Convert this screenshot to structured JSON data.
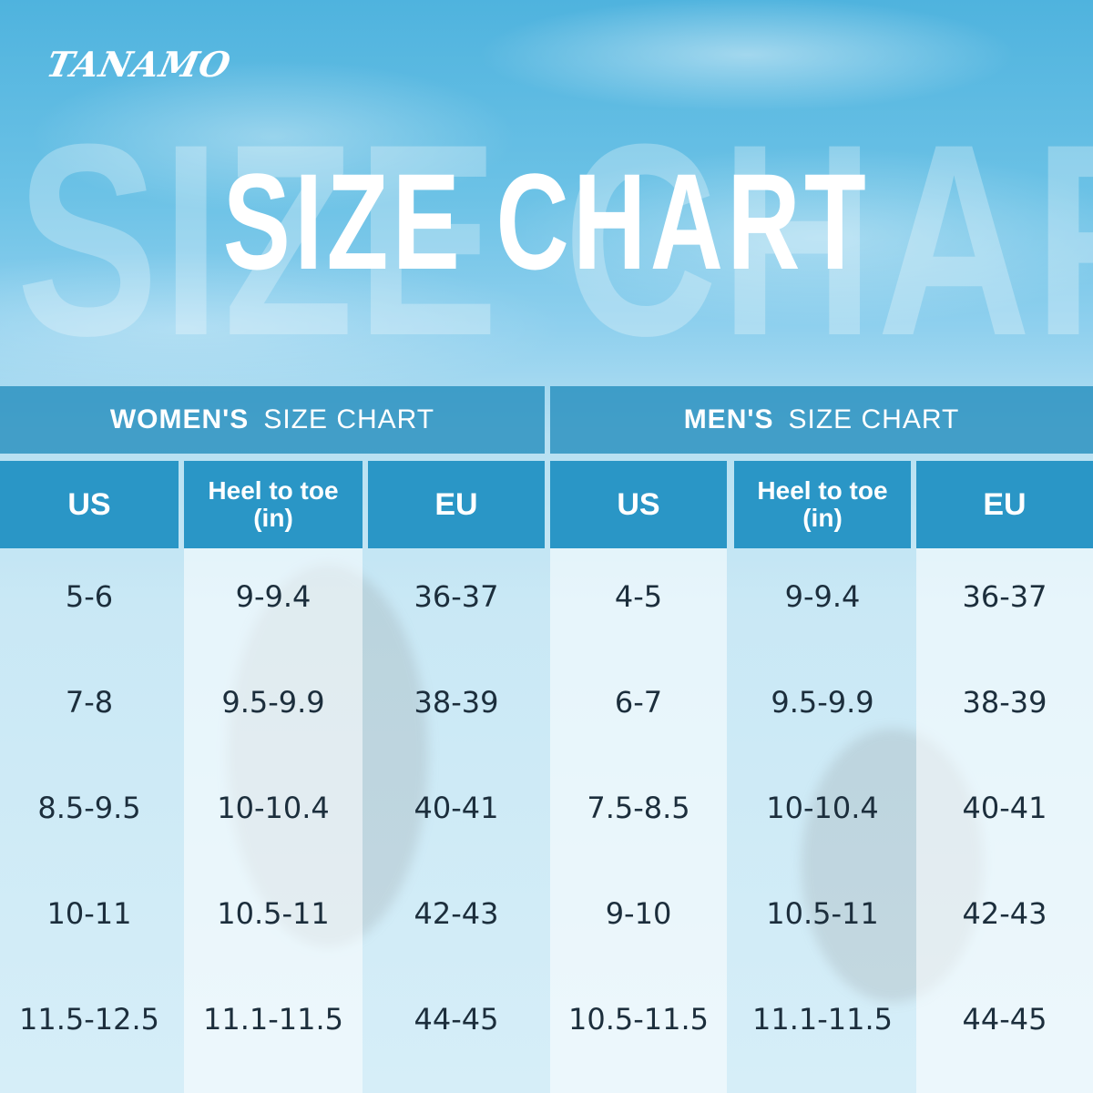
{
  "brand": "TANAMO",
  "background_title": "SIZE CHART",
  "title": "SIZE CHART",
  "women": {
    "header_bold": "WOMEN'S",
    "header_rest": "SIZE CHART",
    "columns": [
      "US",
      "Heel to toe",
      "(in)",
      "EU"
    ],
    "rows": [
      [
        "5-6",
        "9-9.4",
        "36-37"
      ],
      [
        "7-8",
        "9.5-9.9",
        "38-39"
      ],
      [
        "8.5-9.5",
        "10-10.4",
        "40-41"
      ],
      [
        "10-11",
        "10.5-11",
        "42-43"
      ],
      [
        "11.5-12.5",
        "11.1-11.5",
        "44-45"
      ]
    ]
  },
  "men": {
    "header_bold": "MEN'S",
    "header_rest": "SIZE CHART",
    "columns": [
      "US",
      "Heel to toe",
      "(in)",
      "EU"
    ],
    "rows": [
      [
        "4-5",
        "9-9.4",
        "36-37"
      ],
      [
        "6-7",
        "9.5-9.9",
        "38-39"
      ],
      [
        "7.5-8.5",
        "10-10.4",
        "40-41"
      ],
      [
        "9-10",
        "10.5-11",
        "42-43"
      ],
      [
        "10.5-11.5",
        "11.1-11.5",
        "44-45"
      ]
    ]
  },
  "colors": {
    "header_band": "#218cbc",
    "column_header": "#2a96c6",
    "text_dark": "#1c2e3c"
  }
}
